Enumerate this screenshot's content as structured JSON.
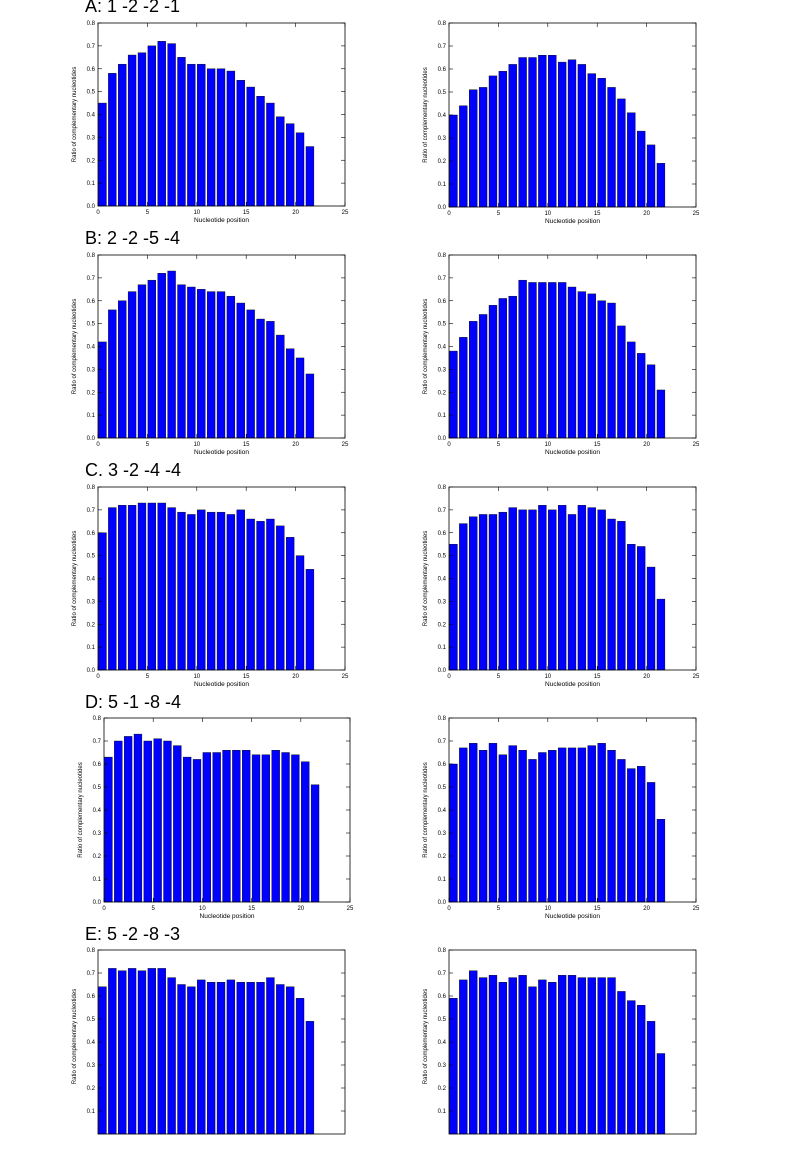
{
  "sections": [
    {
      "title": "A: 1 -2 -2 -1"
    },
    {
      "title": "B: 2 -2 -5 -4"
    },
    {
      "title": "C. 3 -2 -4 -4"
    },
    {
      "title": "D: 5 -1 -8 -4"
    },
    {
      "title": "E: 5 -2 -8 -3"
    }
  ],
  "colors": {
    "bar": "#0000ff",
    "bar_edge": "#000000"
  },
  "chart_data": [
    {
      "type": "bar",
      "section": "A",
      "position": "left",
      "xlabel": "Nucleotide position",
      "ylabel": "Ratio of complementary nucleotides",
      "xlim": [
        0,
        25
      ],
      "ylim": [
        0,
        0.8
      ],
      "xticks": [
        0,
        5,
        10,
        15,
        20,
        25
      ],
      "yticks": [
        0.0,
        0.1,
        0.2,
        0.3,
        0.4,
        0.5,
        0.6,
        0.7,
        0.8
      ],
      "x": [
        0,
        1,
        2,
        3,
        4,
        5,
        6,
        7,
        8,
        9,
        10,
        11,
        12,
        13,
        14,
        15,
        16,
        17,
        18,
        19,
        20,
        21
      ],
      "values": [
        0.45,
        0.58,
        0.62,
        0.66,
        0.67,
        0.7,
        0.72,
        0.71,
        0.65,
        0.62,
        0.62,
        0.6,
        0.6,
        0.59,
        0.55,
        0.52,
        0.48,
        0.45,
        0.39,
        0.36,
        0.32,
        0.26
      ]
    },
    {
      "type": "bar",
      "section": "A",
      "position": "right",
      "xlabel": "Nucleotide position",
      "ylabel": "Ratio of complementary nucleotides",
      "xlim": [
        0,
        25
      ],
      "ylim": [
        0,
        0.8
      ],
      "xticks": [
        0,
        5,
        10,
        15,
        20,
        25
      ],
      "yticks": [
        0.0,
        0.1,
        0.2,
        0.3,
        0.4,
        0.5,
        0.6,
        0.7,
        0.8
      ],
      "x": [
        0,
        1,
        2,
        3,
        4,
        5,
        6,
        7,
        8,
        9,
        10,
        11,
        12,
        13,
        14,
        15,
        16,
        17,
        18,
        19,
        20,
        21
      ],
      "values": [
        0.4,
        0.44,
        0.51,
        0.52,
        0.57,
        0.59,
        0.62,
        0.65,
        0.65,
        0.66,
        0.66,
        0.63,
        0.64,
        0.62,
        0.58,
        0.56,
        0.52,
        0.47,
        0.41,
        0.33,
        0.27,
        0.19
      ]
    },
    {
      "type": "bar",
      "section": "B",
      "position": "left",
      "xlabel": "Nucleotide position",
      "ylabel": "Ratio of complementary nucleotides",
      "xlim": [
        0,
        25
      ],
      "ylim": [
        0,
        0.8
      ],
      "xticks": [
        0,
        5,
        10,
        15,
        20,
        25
      ],
      "yticks": [
        0.0,
        0.1,
        0.2,
        0.3,
        0.4,
        0.5,
        0.6,
        0.7,
        0.8
      ],
      "x": [
        0,
        1,
        2,
        3,
        4,
        5,
        6,
        7,
        8,
        9,
        10,
        11,
        12,
        13,
        14,
        15,
        16,
        17,
        18,
        19,
        20,
        21
      ],
      "values": [
        0.42,
        0.56,
        0.6,
        0.64,
        0.67,
        0.69,
        0.72,
        0.73,
        0.67,
        0.66,
        0.65,
        0.64,
        0.64,
        0.62,
        0.59,
        0.56,
        0.52,
        0.51,
        0.45,
        0.39,
        0.35,
        0.28
      ]
    },
    {
      "type": "bar",
      "section": "B",
      "position": "right",
      "xlabel": "Nucleotide position",
      "ylabel": "Ratio of complementary nucleotides",
      "xlim": [
        0,
        25
      ],
      "ylim": [
        0,
        0.8
      ],
      "xticks": [
        0,
        5,
        10,
        15,
        20,
        25
      ],
      "yticks": [
        0.0,
        0.1,
        0.2,
        0.3,
        0.4,
        0.5,
        0.6,
        0.7,
        0.8
      ],
      "x": [
        0,
        1,
        2,
        3,
        4,
        5,
        6,
        7,
        8,
        9,
        10,
        11,
        12,
        13,
        14,
        15,
        16,
        17,
        18,
        19,
        20,
        21
      ],
      "values": [
        0.38,
        0.44,
        0.51,
        0.54,
        0.58,
        0.61,
        0.62,
        0.69,
        0.68,
        0.68,
        0.68,
        0.68,
        0.66,
        0.64,
        0.63,
        0.6,
        0.59,
        0.49,
        0.42,
        0.37,
        0.32,
        0.21
      ]
    },
    {
      "type": "bar",
      "section": "C",
      "position": "left",
      "xlabel": "Nucleotide position",
      "ylabel": "Ratio of complementary nucleotides",
      "xlim": [
        0,
        25
      ],
      "ylim": [
        0,
        0.8
      ],
      "xticks": [
        0,
        5,
        10,
        15,
        20,
        25
      ],
      "yticks": [
        0.0,
        0.1,
        0.2,
        0.3,
        0.4,
        0.5,
        0.6,
        0.7,
        0.8
      ],
      "x": [
        0,
        1,
        2,
        3,
        4,
        5,
        6,
        7,
        8,
        9,
        10,
        11,
        12,
        13,
        14,
        15,
        16,
        17,
        18,
        19,
        20,
        21
      ],
      "values": [
        0.6,
        0.71,
        0.72,
        0.72,
        0.73,
        0.73,
        0.73,
        0.71,
        0.69,
        0.68,
        0.7,
        0.69,
        0.69,
        0.68,
        0.7,
        0.66,
        0.65,
        0.66,
        0.63,
        0.58,
        0.5,
        0.44
      ]
    },
    {
      "type": "bar",
      "section": "C",
      "position": "right",
      "xlabel": "Nucleotide position",
      "ylabel": "Ratio of complementary nucleotides",
      "xlim": [
        0,
        25
      ],
      "ylim": [
        0,
        0.8
      ],
      "xticks": [
        0,
        5,
        10,
        15,
        20,
        25
      ],
      "yticks": [
        0.0,
        0.1,
        0.2,
        0.3,
        0.4,
        0.5,
        0.6,
        0.7,
        0.8
      ],
      "x": [
        0,
        1,
        2,
        3,
        4,
        5,
        6,
        7,
        8,
        9,
        10,
        11,
        12,
        13,
        14,
        15,
        16,
        17,
        18,
        19,
        20,
        21
      ],
      "values": [
        0.55,
        0.64,
        0.67,
        0.68,
        0.68,
        0.69,
        0.71,
        0.7,
        0.7,
        0.72,
        0.7,
        0.72,
        0.68,
        0.72,
        0.71,
        0.7,
        0.66,
        0.65,
        0.55,
        0.54,
        0.45,
        0.31
      ]
    },
    {
      "type": "bar",
      "section": "D",
      "position": "left",
      "xlabel": "Nucleotide position",
      "ylabel": "Ratio of complementary nucleotides",
      "xlim": [
        0,
        25
      ],
      "ylim": [
        0,
        0.8
      ],
      "xticks": [
        0,
        5,
        10,
        15,
        20,
        25
      ],
      "yticks": [
        0.0,
        0.1,
        0.2,
        0.3,
        0.4,
        0.5,
        0.6,
        0.7,
        0.8
      ],
      "x": [
        0,
        1,
        2,
        3,
        4,
        5,
        6,
        7,
        8,
        9,
        10,
        11,
        12,
        13,
        14,
        15,
        16,
        17,
        18,
        19,
        20,
        21
      ],
      "values": [
        0.63,
        0.7,
        0.72,
        0.73,
        0.7,
        0.71,
        0.7,
        0.68,
        0.63,
        0.62,
        0.65,
        0.65,
        0.66,
        0.66,
        0.66,
        0.64,
        0.64,
        0.66,
        0.65,
        0.64,
        0.61,
        0.51
      ]
    },
    {
      "type": "bar",
      "section": "D",
      "position": "right",
      "xlabel": "Nucleotide position",
      "ylabel": "Ratio of complementary nucleotides",
      "xlim": [
        0,
        25
      ],
      "ylim": [
        0,
        0.8
      ],
      "xticks": [
        0,
        5,
        10,
        15,
        20,
        25
      ],
      "yticks": [
        0.0,
        0.1,
        0.2,
        0.3,
        0.4,
        0.5,
        0.6,
        0.7,
        0.8
      ],
      "x": [
        0,
        1,
        2,
        3,
        4,
        5,
        6,
        7,
        8,
        9,
        10,
        11,
        12,
        13,
        14,
        15,
        16,
        17,
        18,
        19,
        20,
        21
      ],
      "values": [
        0.6,
        0.67,
        0.69,
        0.66,
        0.69,
        0.64,
        0.68,
        0.66,
        0.62,
        0.65,
        0.66,
        0.67,
        0.67,
        0.67,
        0.68,
        0.69,
        0.66,
        0.62,
        0.58,
        0.59,
        0.52,
        0.36
      ]
    },
    {
      "type": "bar",
      "section": "E",
      "position": "left",
      "xlabel": "",
      "ylabel": "Ratio of complementary nucleotides",
      "xlim": [
        0,
        25
      ],
      "ylim": [
        0,
        0.8
      ],
      "xticks": [],
      "yticks": [
        0.1,
        0.2,
        0.3,
        0.4,
        0.5,
        0.6,
        0.7,
        0.8
      ],
      "x": [
        0,
        1,
        2,
        3,
        4,
        5,
        6,
        7,
        8,
        9,
        10,
        11,
        12,
        13,
        14,
        15,
        16,
        17,
        18,
        19,
        20,
        21
      ],
      "values": [
        0.64,
        0.72,
        0.71,
        0.72,
        0.71,
        0.72,
        0.72,
        0.68,
        0.65,
        0.64,
        0.67,
        0.66,
        0.66,
        0.67,
        0.66,
        0.66,
        0.66,
        0.68,
        0.65,
        0.64,
        0.59,
        0.49
      ]
    },
    {
      "type": "bar",
      "section": "E",
      "position": "right",
      "xlabel": "",
      "ylabel": "Ratio of complementary nucleotides",
      "xlim": [
        0,
        25
      ],
      "ylim": [
        0,
        0.8
      ],
      "xticks": [],
      "yticks": [
        0.1,
        0.2,
        0.3,
        0.4,
        0.5,
        0.6,
        0.7,
        0.8
      ],
      "x": [
        0,
        1,
        2,
        3,
        4,
        5,
        6,
        7,
        8,
        9,
        10,
        11,
        12,
        13,
        14,
        15,
        16,
        17,
        18,
        19,
        20,
        21
      ],
      "values": [
        0.59,
        0.67,
        0.71,
        0.68,
        0.69,
        0.66,
        0.68,
        0.69,
        0.64,
        0.67,
        0.66,
        0.69,
        0.69,
        0.68,
        0.68,
        0.68,
        0.68,
        0.62,
        0.58,
        0.56,
        0.49,
        0.35
      ]
    }
  ]
}
